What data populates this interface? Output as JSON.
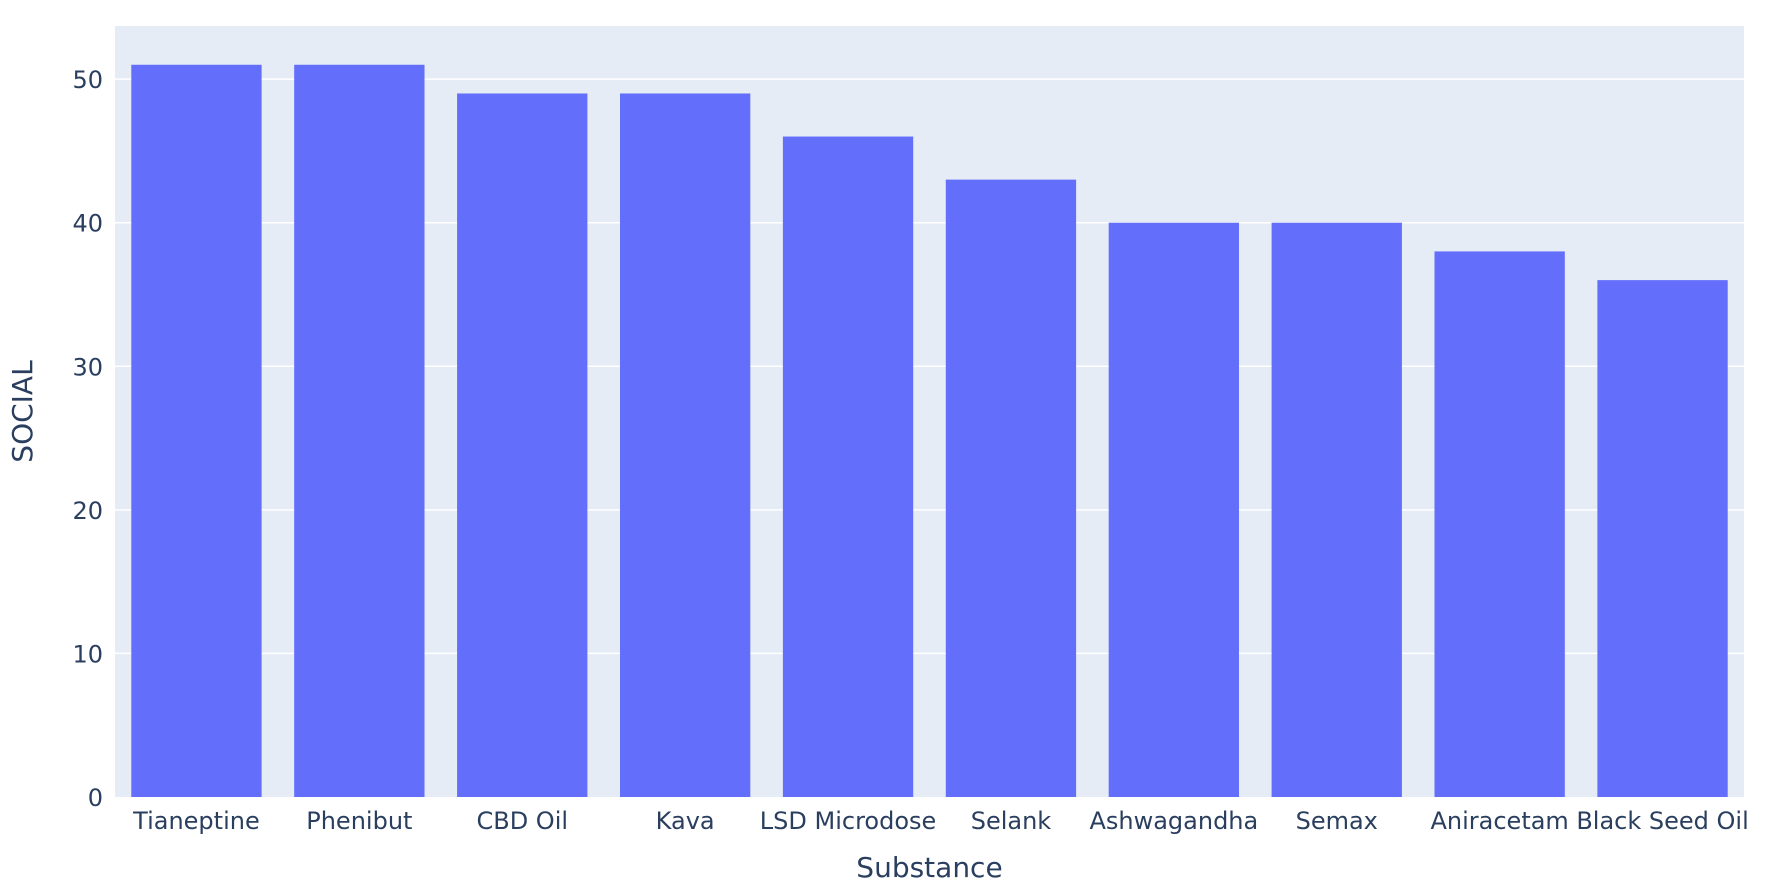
{
  "chart_data": {
    "type": "bar",
    "title": "",
    "xlabel": "Substance",
    "ylabel": "SOCIAL",
    "categories": [
      "Tianeptine",
      "Phenibut",
      "CBD Oil",
      "Kava",
      "LSD Microdose",
      "Selank",
      "Ashwagandha",
      "Semax",
      "Aniracetam",
      "Black Seed Oil"
    ],
    "values": [
      51,
      51,
      49,
      49,
      46,
      43,
      40,
      40,
      38,
      36
    ],
    "ylim": [
      0,
      53.7
    ],
    "yticks": [
      0,
      10,
      20,
      30,
      40,
      50
    ],
    "grid": true,
    "legend": "none"
  },
  "colors": {
    "bar": "#636efa",
    "plot_bg": "#e5ecf6",
    "grid": "#ffffff",
    "text": "#2a3f5f"
  }
}
